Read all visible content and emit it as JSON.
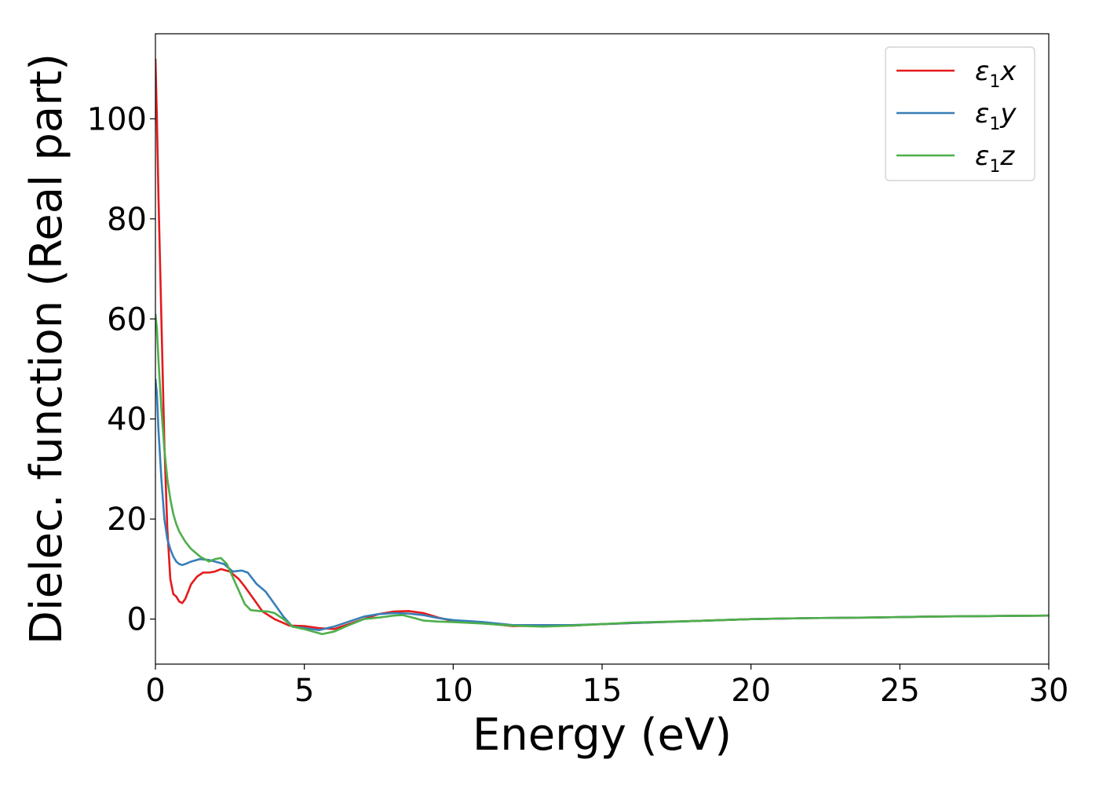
{
  "chart_data": {
    "type": "line",
    "title": "",
    "xlabel": "Energy (eV)",
    "ylabel": "Dielec. function (Real part)",
    "xlim": [
      0,
      30
    ],
    "ylim": [
      -9,
      117
    ],
    "xticks": [
      0,
      5,
      10,
      15,
      20,
      25,
      30
    ],
    "yticks": [
      0,
      20,
      40,
      60,
      80,
      100
    ],
    "grid": false,
    "legend_position": "top-right",
    "series": [
      {
        "name": "ε₁x",
        "legend": {
          "base": "ε",
          "sub": "1",
          "var": "x"
        },
        "color": "#e41a1c",
        "x": [
          0,
          0.05,
          0.1,
          0.2,
          0.3,
          0.4,
          0.5,
          0.6,
          0.7,
          0.8,
          0.9,
          1.0,
          1.1,
          1.2,
          1.4,
          1.6,
          1.8,
          2.0,
          2.2,
          2.5,
          2.8,
          3.0,
          3.3,
          3.6,
          4.0,
          4.5,
          5.0,
          5.5,
          6.0,
          6.5,
          7.0,
          7.5,
          8.0,
          8.5,
          9.0,
          9.5,
          10,
          11,
          12,
          13,
          14,
          15,
          16,
          18,
          20,
          22,
          24,
          26,
          28,
          30
        ],
        "y": [
          112,
          100,
          85,
          60,
          35,
          18,
          8,
          5,
          4.5,
          3.5,
          3.2,
          4,
          5.5,
          7,
          8.5,
          9.3,
          9.3,
          9.5,
          10,
          9.5,
          8,
          6.5,
          4,
          1.5,
          0,
          -1.3,
          -1.4,
          -1.8,
          -2,
          -1,
          0,
          1,
          1.5,
          1.6,
          1.2,
          0.3,
          -0.4,
          -0.8,
          -1.4,
          -1.3,
          -1.3,
          -1.0,
          -0.8,
          -0.4,
          0,
          0.2,
          0.3,
          0.5,
          0.6,
          0.7
        ]
      },
      {
        "name": "ε₁y",
        "legend": {
          "base": "ε",
          "sub": "1",
          "var": "y"
        },
        "color": "#377eb8",
        "x": [
          0,
          0.05,
          0.1,
          0.2,
          0.3,
          0.4,
          0.5,
          0.6,
          0.7,
          0.8,
          0.9,
          1.0,
          1.2,
          1.5,
          1.8,
          2.0,
          2.3,
          2.6,
          2.9,
          3.1,
          3.4,
          3.7,
          4.0,
          4.3,
          4.6,
          5.0,
          5.5,
          6.0,
          6.5,
          7.0,
          7.5,
          8.0,
          8.5,
          9.0,
          9.5,
          10,
          11,
          12,
          13,
          14,
          15,
          16,
          18,
          20,
          22,
          24,
          26,
          28,
          30
        ],
        "y": [
          48,
          45,
          38,
          28,
          20,
          16,
          14,
          12.5,
          11.5,
          11,
          10.8,
          11,
          11.5,
          12,
          11.8,
          11.5,
          11,
          9.5,
          9.7,
          9.3,
          7,
          5.5,
          3,
          0.5,
          -1.5,
          -1.8,
          -2.2,
          -1.5,
          -0.5,
          0.5,
          1,
          1.2,
          1.1,
          0.8,
          0.2,
          -0.2,
          -0.6,
          -1.2,
          -1.2,
          -1.2,
          -1.0,
          -0.8,
          -0.4,
          0,
          0.2,
          0.3,
          0.5,
          0.6,
          0.7
        ]
      },
      {
        "name": "ε₁z",
        "legend": {
          "base": "ε",
          "sub": "1",
          "var": "z"
        },
        "color": "#4daf4a",
        "x": [
          0,
          0.05,
          0.1,
          0.2,
          0.3,
          0.4,
          0.5,
          0.6,
          0.7,
          0.8,
          0.9,
          1.0,
          1.2,
          1.5,
          1.8,
          2.0,
          2.2,
          2.4,
          2.7,
          3.0,
          3.2,
          3.5,
          3.8,
          4.0,
          4.3,
          4.6,
          5.0,
          5.3,
          5.6,
          6.0,
          6.5,
          7.0,
          7.5,
          8.0,
          8.3,
          8.7,
          9.0,
          9.5,
          10,
          11,
          12,
          13,
          14,
          15,
          16,
          18,
          20,
          22,
          24,
          26,
          28,
          30
        ],
        "y": [
          61,
          58,
          52,
          42,
          34,
          28,
          24,
          21,
          19,
          17.5,
          16.5,
          15.5,
          14,
          12.5,
          11.5,
          12,
          12.2,
          11,
          7,
          3,
          1.8,
          1.6,
          1.5,
          1.2,
          0,
          -1.5,
          -2,
          -2.5,
          -3,
          -2.5,
          -1.2,
          0,
          0.3,
          0.7,
          0.8,
          0.2,
          -0.3,
          -0.5,
          -0.6,
          -0.9,
          -1.3,
          -1.5,
          -1.3,
          -1.0,
          -0.7,
          -0.4,
          0,
          0.2,
          0.3,
          0.5,
          0.6,
          0.7
        ]
      }
    ]
  }
}
